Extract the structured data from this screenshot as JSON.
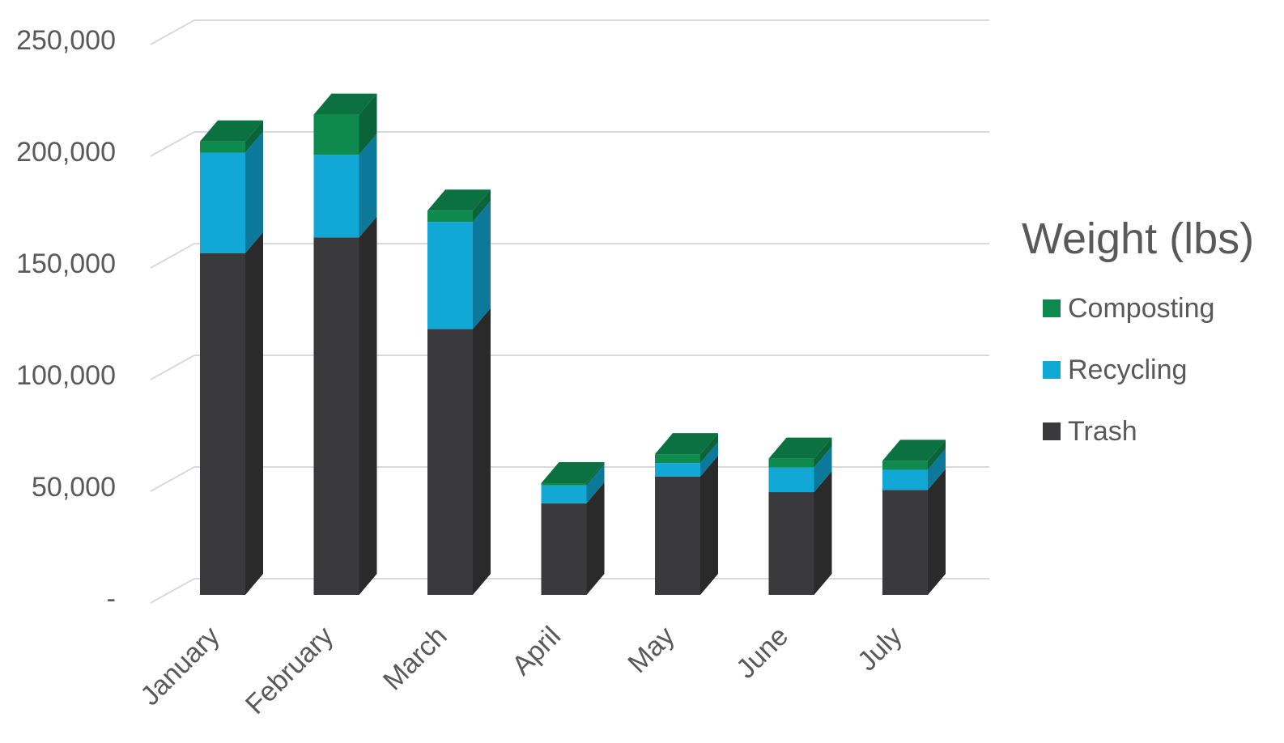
{
  "chart_data": {
    "type": "bar",
    "stacked": true,
    "three_d": true,
    "categories": [
      "January",
      "February",
      "March",
      "April",
      "May",
      "June",
      "July"
    ],
    "series": [
      {
        "name": "Trash",
        "values": [
          153000,
          160000,
          119000,
          41000,
          53000,
          46000,
          47000
        ],
        "color": "#3a3a3c"
      },
      {
        "name": "Recycling",
        "values": [
          45000,
          37000,
          48000,
          8000,
          6000,
          11000,
          9000
        ],
        "color": "#12a8d6"
      },
      {
        "name": "Composting",
        "values": [
          5000,
          18000,
          5000,
          1000,
          4000,
          4000,
          4000
        ],
        "color": "#0e8a4f"
      }
    ],
    "y_ticks": [
      "-",
      "50,000",
      "100,000",
      "150,000",
      "200,000",
      "250,000"
    ],
    "ylim": [
      0,
      250000
    ],
    "grid": true,
    "legend": {
      "title": "Weight (lbs)",
      "entries": [
        "Composting",
        "Recycling",
        "Trash"
      ],
      "placement": "right"
    }
  }
}
